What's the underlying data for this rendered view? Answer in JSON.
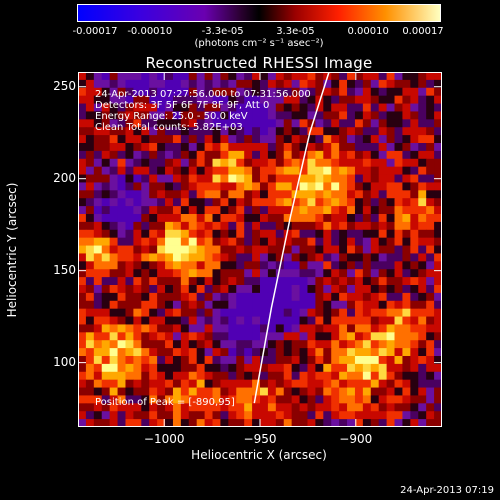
{
  "colorbar": {
    "tick_labels": [
      "-0.00017",
      "-0.00010",
      "-3.3e-05",
      "3.3e-05",
      "0.00010",
      "0.00017"
    ],
    "units_label": "(photons cm⁻² s⁻¹ asec⁻²)",
    "range": [
      -0.00017,
      0.00017
    ]
  },
  "info": {
    "time_range": "24-Apr-2013 07:27:56.000 to 07:31:56.000",
    "detectors": "Detectors: 3F 5F 6F 7F 8F 9F, Att 0",
    "energy": "Energy Range: 25.0 - 50.0 keV",
    "clean": "Clean    Total counts: 5.82E+03",
    "peak": "Position of Peak = [-890,95]"
  },
  "footer": {
    "timestamp": "24-Apr-2013 07:19"
  },
  "chart_data": {
    "type": "heatmap",
    "title": "Reconstructed RHESSI Image",
    "xlabel": "Heliocentric X (arcsec)",
    "ylabel": "Heliocentric Y (arcsec)",
    "xlim": [
      -1045,
      -855
    ],
    "ylim": [
      65,
      258
    ],
    "x_ticks": [
      "-1000",
      "-950",
      "-900"
    ],
    "x_tick_values": [
      -1000,
      -950,
      -900
    ],
    "y_ticks": [
      "100",
      "150",
      "200",
      "250"
    ],
    "y_tick_values": [
      100,
      150,
      200,
      250
    ],
    "limb_curve": {
      "x": [
        -953,
        -944,
        -934,
        -924,
        -914
      ],
      "y": [
        78,
        130,
        180,
        225,
        258
      ]
    },
    "colormap": [
      "#0000ff",
      "#5a00c8",
      "#7a00a0",
      "#1e0000",
      "#c80000",
      "#ff6000",
      "#ffb000",
      "#ffff80"
    ]
  }
}
